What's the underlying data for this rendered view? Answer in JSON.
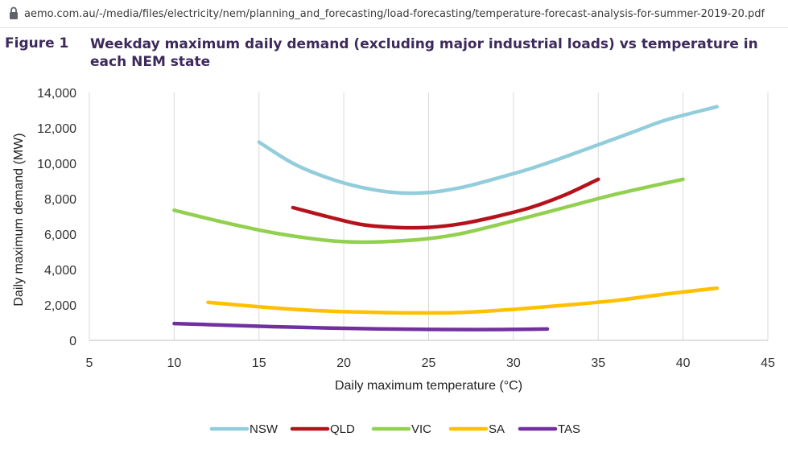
{
  "browser": {
    "url": "aemo.com.au/-/media/files/electricity/nem/planning_and_forecasting/load-forecasting/temperature-forecast-analysis-for-summer-2019-20.pdf",
    "lock_icon": "lock-icon"
  },
  "figure": {
    "label": "Figure 1",
    "title": "Weekday maximum daily demand (excluding major industrial loads) vs temperature in each NEM state"
  },
  "chart_data": {
    "type": "line",
    "title": "Weekday maximum daily demand (excluding major industrial loads) vs temperature in each NEM state",
    "xlabel": "Daily maximum temperature (°C)",
    "ylabel": "Daily maximum demand (MW)",
    "xlim": [
      5,
      45
    ],
    "ylim": [
      0,
      14000
    ],
    "x_ticks": [
      5,
      10,
      15,
      20,
      25,
      30,
      35,
      40,
      45
    ],
    "y_ticks": [
      0,
      2000,
      4000,
      6000,
      8000,
      10000,
      12000,
      14000
    ],
    "y_tick_labels": [
      "0",
      "2,000",
      "4,000",
      "6,000",
      "8,000",
      "10,000",
      "12,000",
      "14,000"
    ],
    "grid": "vertical",
    "legend_position": "bottom",
    "series": [
      {
        "name": "NSW",
        "color": "#92cddc",
        "x": [
          15,
          17,
          19,
          21,
          23,
          25,
          27,
          29,
          31,
          33,
          35,
          37,
          39,
          42
        ],
        "y": [
          11200,
          10000,
          9200,
          8650,
          8350,
          8350,
          8650,
          9150,
          9700,
          10350,
          11050,
          11750,
          12450,
          13200
        ]
      },
      {
        "name": "QLD",
        "color": "#b5121b",
        "x": [
          17,
          19,
          21,
          23,
          25,
          27,
          29,
          31,
          33,
          35
        ],
        "y": [
          7500,
          7000,
          6550,
          6380,
          6380,
          6600,
          7000,
          7500,
          8200,
          9100
        ]
      },
      {
        "name": "VIC",
        "color": "#92d050",
        "x": [
          10,
          13,
          16,
          19,
          21,
          23,
          25,
          27,
          30,
          33,
          36,
          40
        ],
        "y": [
          7350,
          6650,
          6050,
          5650,
          5550,
          5600,
          5750,
          6050,
          6750,
          7500,
          8250,
          9100
        ]
      },
      {
        "name": "SA",
        "color": "#ffc000",
        "x": [
          12,
          15,
          18,
          21,
          24,
          27,
          30,
          33,
          36,
          39,
          42
        ],
        "y": [
          2150,
          1900,
          1700,
          1600,
          1550,
          1580,
          1750,
          1980,
          2250,
          2620,
          2950
        ]
      },
      {
        "name": "TAS",
        "color": "#7030a0",
        "x": [
          10,
          13,
          16,
          19,
          22,
          25,
          28,
          30,
          32
        ],
        "y": [
          950,
          860,
          770,
          700,
          650,
          620,
          610,
          620,
          640
        ]
      }
    ]
  }
}
